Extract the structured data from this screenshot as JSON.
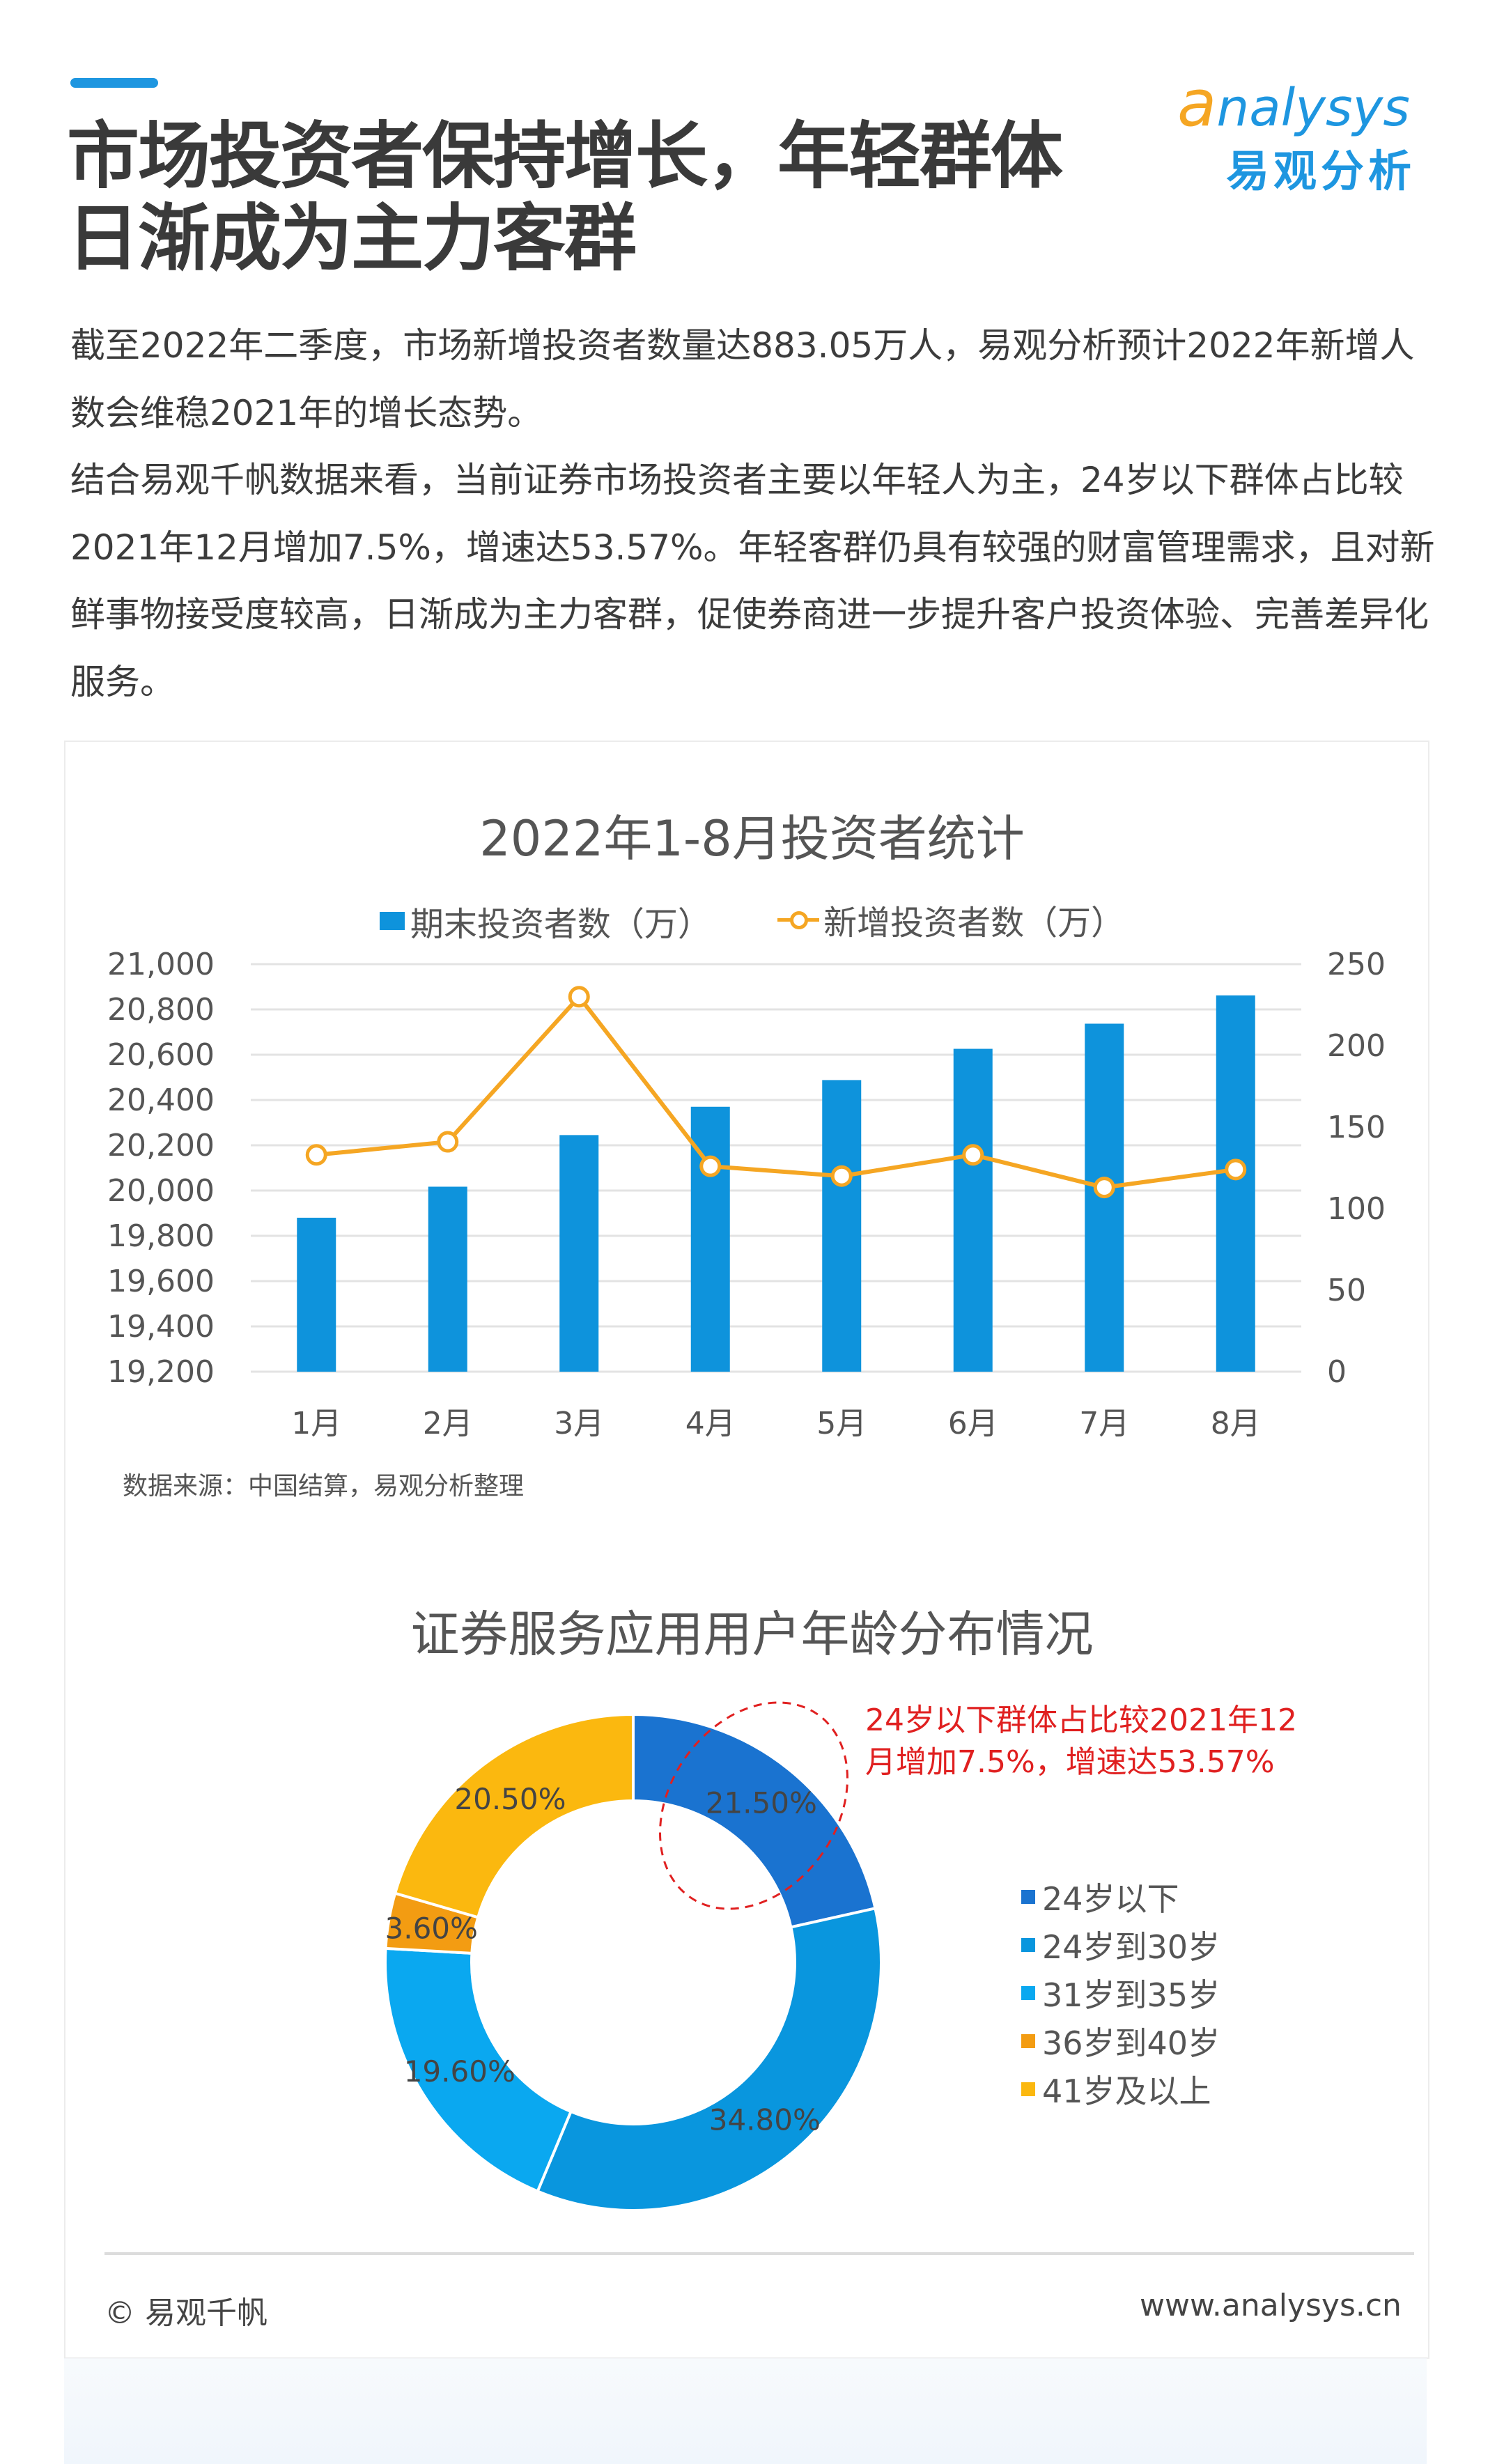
{
  "header": {
    "title_line1": "市场投资者保持增长，年轻群体",
    "title_line2": "日渐成为主力客群",
    "logo": {
      "en_initial": "a",
      "en_rest": "nalysys",
      "cn": "易观分析"
    }
  },
  "body": {
    "paragraphs": [
      "截至2022年二季度，市场新增投资者数量达883.05万人，易观分析预计2022年新增人数会维稳2021年的增长态势。",
      "结合易观千帆数据来看，当前证券市场投资者主要以年轻人为主，24岁以下群体占比较2021年12月增加7.5%，增速达53.57%。年轻客群仍具有较强的财富管理需求，且对新鲜事物接受度较高，日渐成为主力客群，促使券商进一步提升客户投资体验、完善差异化服务。"
    ]
  },
  "bar_chart": {
    "title": "2022年1-8月投资者统计",
    "legend": {
      "bar": "期末投资者数（万）",
      "line": "新增投资者数（万）"
    },
    "source": "数据来源：中国结算，易观分析整理",
    "left_ticks": [
      "21,000",
      "20,800",
      "20,600",
      "20,400",
      "20,200",
      "20,000",
      "19,800",
      "19,600",
      "19,400",
      "19,200"
    ],
    "right_ticks": [
      "250",
      "200",
      "150",
      "100",
      "50",
      "0"
    ],
    "months": [
      "1月",
      "2月",
      "3月",
      "4月",
      "5月",
      "6月",
      "7月",
      "8月"
    ]
  },
  "donut_chart": {
    "title": "证券服务应用用户年龄分布情况",
    "annotation_line1": "24岁以下群体占比较2021年12",
    "annotation_line2": "月增加7.5%，增速达53.57%",
    "legend": [
      "24岁以下",
      "24岁到30岁",
      "31岁到35岁",
      "36岁到40岁",
      "41岁及以上"
    ],
    "labels": [
      "21.50%",
      "34.80%",
      "19.60%",
      "3.60%",
      "20.50%"
    ]
  },
  "footer": {
    "left": "© 易观千帆",
    "right": "www.analysys.cn"
  },
  "colors": {
    "accent": "#1e96e0",
    "bar": "#0e93dc",
    "line": "#f5a623",
    "annotation": "#e02020",
    "donut": [
      "#1a73d0",
      "#0996de",
      "#0aa8f0",
      "#f39c12",
      "#fbb80f"
    ]
  },
  "chart_data": [
    {
      "type": "bar",
      "title": "2022年1-8月投资者统计",
      "categories": [
        "1月",
        "2月",
        "3月",
        "4月",
        "5月",
        "6月",
        "7月",
        "8月"
      ],
      "series": [
        {
          "name": "期末投资者数（万）",
          "type": "bar",
          "axis": "left",
          "values": [
            19880,
            20017,
            20245,
            20370,
            20488,
            20626,
            20737,
            20862
          ]
        },
        {
          "name": "新增投资者数（万）",
          "type": "line",
          "axis": "right",
          "values": [
            133,
            141,
            230,
            126,
            120,
            133,
            113,
            124
          ]
        }
      ],
      "xlabel": "",
      "ylabel": "",
      "ylim_left": [
        19200,
        21000
      ],
      "ylim_right": [
        0,
        250
      ],
      "grid": true,
      "legend_position": "top",
      "source": "数据来源：中国结算，易观分析整理"
    },
    {
      "type": "pie",
      "subtype": "donut",
      "title": "证券服务应用用户年龄分布情况",
      "categories": [
        "24岁以下",
        "24岁到30岁",
        "31岁到35岁",
        "36岁到40岁",
        "41岁及以上"
      ],
      "values": [
        21.5,
        34.8,
        19.6,
        3.6,
        20.5
      ],
      "unit": "%",
      "legend_position": "right",
      "annotation": "24岁以下群体占比较2021年12月增加7.5%，增速达53.57%"
    }
  ]
}
